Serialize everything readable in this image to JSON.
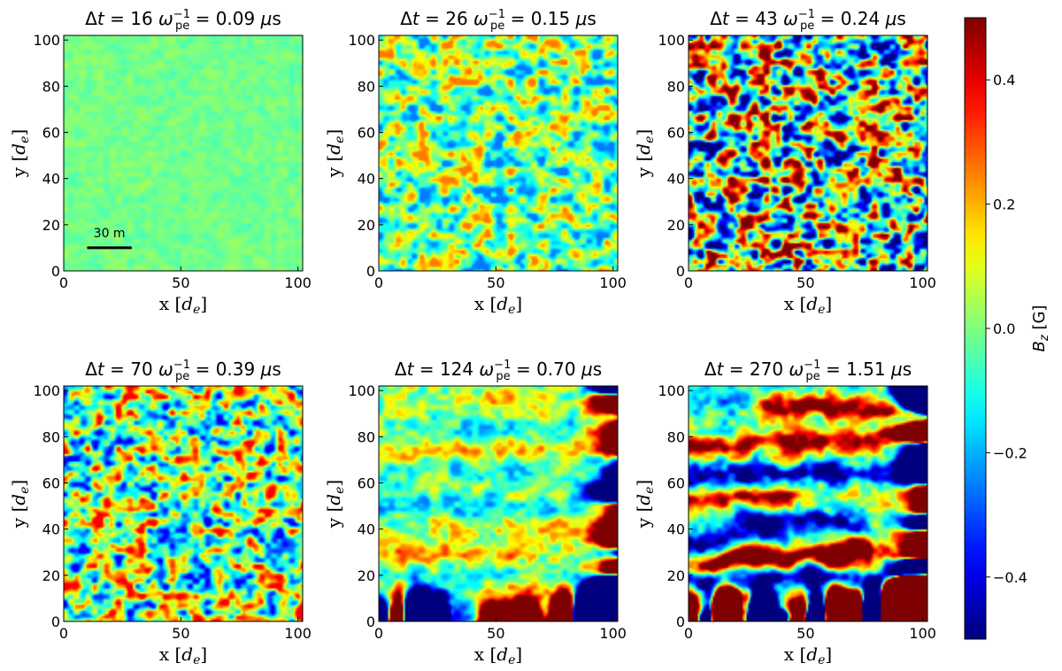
{
  "chart_data": {
    "type": "heatmap",
    "colormap": "jet",
    "colors": [
      "#00007f",
      "#0000ff",
      "#007fff",
      "#00ffff",
      "#7fff7f",
      "#ffff00",
      "#ff7f00",
      "#ff0000",
      "#7f0000"
    ],
    "shared_xlabel": "x [d_e]",
    "shared_ylabel": "y [d_e]",
    "xlim": [
      0,
      102
    ],
    "ylim": [
      0,
      102
    ],
    "xticks": [
      "0",
      "50",
      "100"
    ],
    "yticks": [
      "0",
      "20",
      "40",
      "60",
      "80",
      "100"
    ],
    "colorbar": {
      "label": "B_z [G]",
      "range": [
        -0.5,
        0.5
      ],
      "ticks": [
        "−0.4",
        "−0.2",
        "0.0",
        "0.2",
        "0.4"
      ],
      "tick_values": [
        -0.4,
        -0.2,
        0.0,
        0.2,
        0.4
      ]
    },
    "scale_bar": {
      "panel": 0,
      "label": "30 m",
      "x_start": 10,
      "x_end": 29,
      "y": 10
    },
    "panels": [
      {
        "title_num": "16",
        "title_time": "0.09",
        "amplitude": 0.07,
        "band_strength": 0.0,
        "turb_strength": 0.15,
        "bands": []
      },
      {
        "title_num": "26",
        "title_time": "0.15",
        "amplitude": 0.3,
        "band_strength": 0.0,
        "turb_strength": 0.85,
        "bands": []
      },
      {
        "title_num": "43",
        "title_time": "0.24",
        "amplitude": 0.55,
        "band_strength": 0.0,
        "turb_strength": 1.0,
        "bands": []
      },
      {
        "title_num": "70",
        "title_time": "0.39",
        "amplitude": 0.38,
        "band_strength": 0.0,
        "turb_strength": 1.0,
        "bands": []
      },
      {
        "title_num": "124",
        "title_time": "0.70",
        "amplitude": 0.3,
        "band_strength": 0.8,
        "turb_strength": 0.5,
        "bands": [
          {
            "y": 95,
            "value": 0.7,
            "x_from": 40,
            "x_to": 70
          },
          {
            "y": 84,
            "value": -0.5,
            "x_from": 30,
            "x_to": 80
          },
          {
            "y": 74,
            "value": 0.6,
            "x_from": 0,
            "x_to": 100
          },
          {
            "y": 64,
            "value": -0.4,
            "x_from": 0,
            "x_to": 70
          },
          {
            "y": 50,
            "value": -0.5,
            "x_from": 0,
            "x_to": 100
          },
          {
            "y": 40,
            "value": 0.5,
            "x_from": 30,
            "x_to": 100
          },
          {
            "y": 29,
            "value": 0.9,
            "x_from": 0,
            "x_to": 60
          },
          {
            "y": 20,
            "value": -0.4,
            "x_from": 0,
            "x_to": 100
          },
          {
            "y": 3,
            "value": -0.6,
            "x_from": 40,
            "x_to": 100
          }
        ]
      },
      {
        "title_num": "270",
        "title_time": "1.51",
        "amplitude": 0.55,
        "band_strength": 1.0,
        "turb_strength": 0.3,
        "bands": [
          {
            "y": 96,
            "value": -0.4,
            "x_from": 0,
            "x_to": 30
          },
          {
            "y": 93,
            "value": 1.0,
            "x_from": 35,
            "x_to": 100
          },
          {
            "y": 77,
            "value": 0.9,
            "x_from": 0,
            "x_to": 100
          },
          {
            "y": 64,
            "value": -0.9,
            "x_from": 0,
            "x_to": 100
          },
          {
            "y": 53,
            "value": 0.8,
            "x_from": 0,
            "x_to": 40
          },
          {
            "y": 43,
            "value": -0.9,
            "x_from": 25,
            "x_to": 70
          },
          {
            "y": 37,
            "value": -0.9,
            "x_from": 0,
            "x_to": 35
          },
          {
            "y": 29,
            "value": 1.3,
            "x_from": 10,
            "x_to": 75
          },
          {
            "y": 18,
            "value": -0.9,
            "x_from": 0,
            "x_to": 100
          },
          {
            "y": 8,
            "value": 0.8,
            "x_from": 0,
            "x_to": 100
          },
          {
            "y": 3,
            "value": -0.8,
            "x_from": 40,
            "x_to": 100
          }
        ]
      }
    ]
  }
}
